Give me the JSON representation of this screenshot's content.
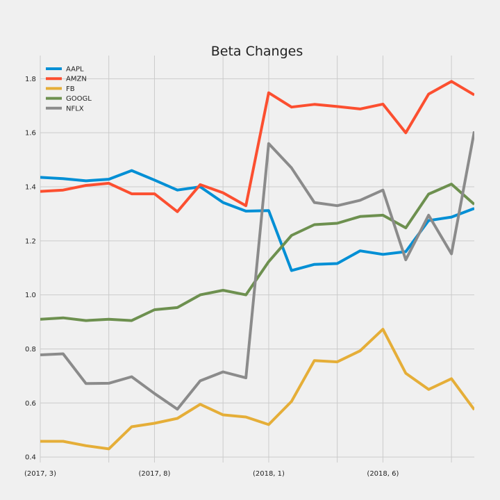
{
  "chart_data": {
    "type": "line",
    "title": "Beta Changes",
    "xlabel": "",
    "ylabel": "",
    "x": [
      "2017-03",
      "2017-04",
      "2017-05",
      "2017-06",
      "2017-07",
      "2017-08",
      "2017-09",
      "2017-10",
      "2017-11",
      "2017-12",
      "2018-01",
      "2018-02",
      "2018-03",
      "2018-04",
      "2018-05",
      "2018-06",
      "2018-07",
      "2018-08",
      "2018-09",
      "2018-10"
    ],
    "x_tick_labels": [
      {
        "at": "2017-03",
        "label": "(2017, 3)"
      },
      {
        "at": "2017-08",
        "label": "(2017, 8)"
      },
      {
        "at": "2018-01",
        "label": "(2018, 1)"
      },
      {
        "at": "2018-06",
        "label": "(2018, 6)"
      }
    ],
    "x_minor_gridlines": [
      "2017-06",
      "2017-11",
      "2018-04",
      "2018-09"
    ],
    "ylim": [
      0.39,
      1.86
    ],
    "yticks": [
      0.4,
      0.6,
      0.8,
      1.0,
      1.2,
      1.4,
      1.6,
      1.8
    ],
    "ytick_labels": [
      "0.4",
      "0.6",
      "0.8",
      "1.0",
      "1.2",
      "1.4",
      "1.6",
      "1.8"
    ],
    "grid": true,
    "legend_position": "top-left",
    "series": [
      {
        "name": "AAPL",
        "color": "#008fd5",
        "values": [
          1.435,
          1.43,
          1.422,
          1.428,
          1.46,
          1.425,
          1.388,
          1.4,
          1.342,
          1.31,
          1.312,
          1.09,
          1.113,
          1.116,
          1.163,
          1.15,
          1.16,
          1.275,
          1.288,
          1.32
        ]
      },
      {
        "name": "AMZN",
        "color": "#fc4f30",
        "values": [
          1.383,
          1.388,
          1.405,
          1.413,
          1.374,
          1.374,
          1.308,
          1.408,
          1.378,
          1.33,
          1.748,
          1.695,
          1.705,
          1.697,
          1.688,
          1.706,
          1.6,
          1.743,
          1.79,
          1.74
        ]
      },
      {
        "name": "FB",
        "color": "#e5ae38",
        "values": [
          0.458,
          0.458,
          0.442,
          0.43,
          0.512,
          0.525,
          0.543,
          0.595,
          0.556,
          0.548,
          0.52,
          0.606,
          0.757,
          0.752,
          0.793,
          0.873,
          0.71,
          0.65,
          0.69,
          0.575
        ]
      },
      {
        "name": "GOOGL",
        "color": "#6d904f",
        "values": [
          0.91,
          0.915,
          0.905,
          0.91,
          0.905,
          0.945,
          0.953,
          1.0,
          1.017,
          1.0,
          1.123,
          1.22,
          1.26,
          1.265,
          1.29,
          1.295,
          1.248,
          1.373,
          1.41,
          1.335
        ]
      },
      {
        "name": "NFLX",
        "color": "#8b8b8b",
        "values": [
          0.778,
          0.782,
          0.672,
          0.673,
          0.697,
          0.635,
          0.577,
          0.682,
          0.715,
          0.693,
          1.56,
          1.47,
          1.342,
          1.33,
          1.35,
          1.388,
          1.13,
          1.295,
          1.152,
          1.605
        ]
      }
    ]
  }
}
